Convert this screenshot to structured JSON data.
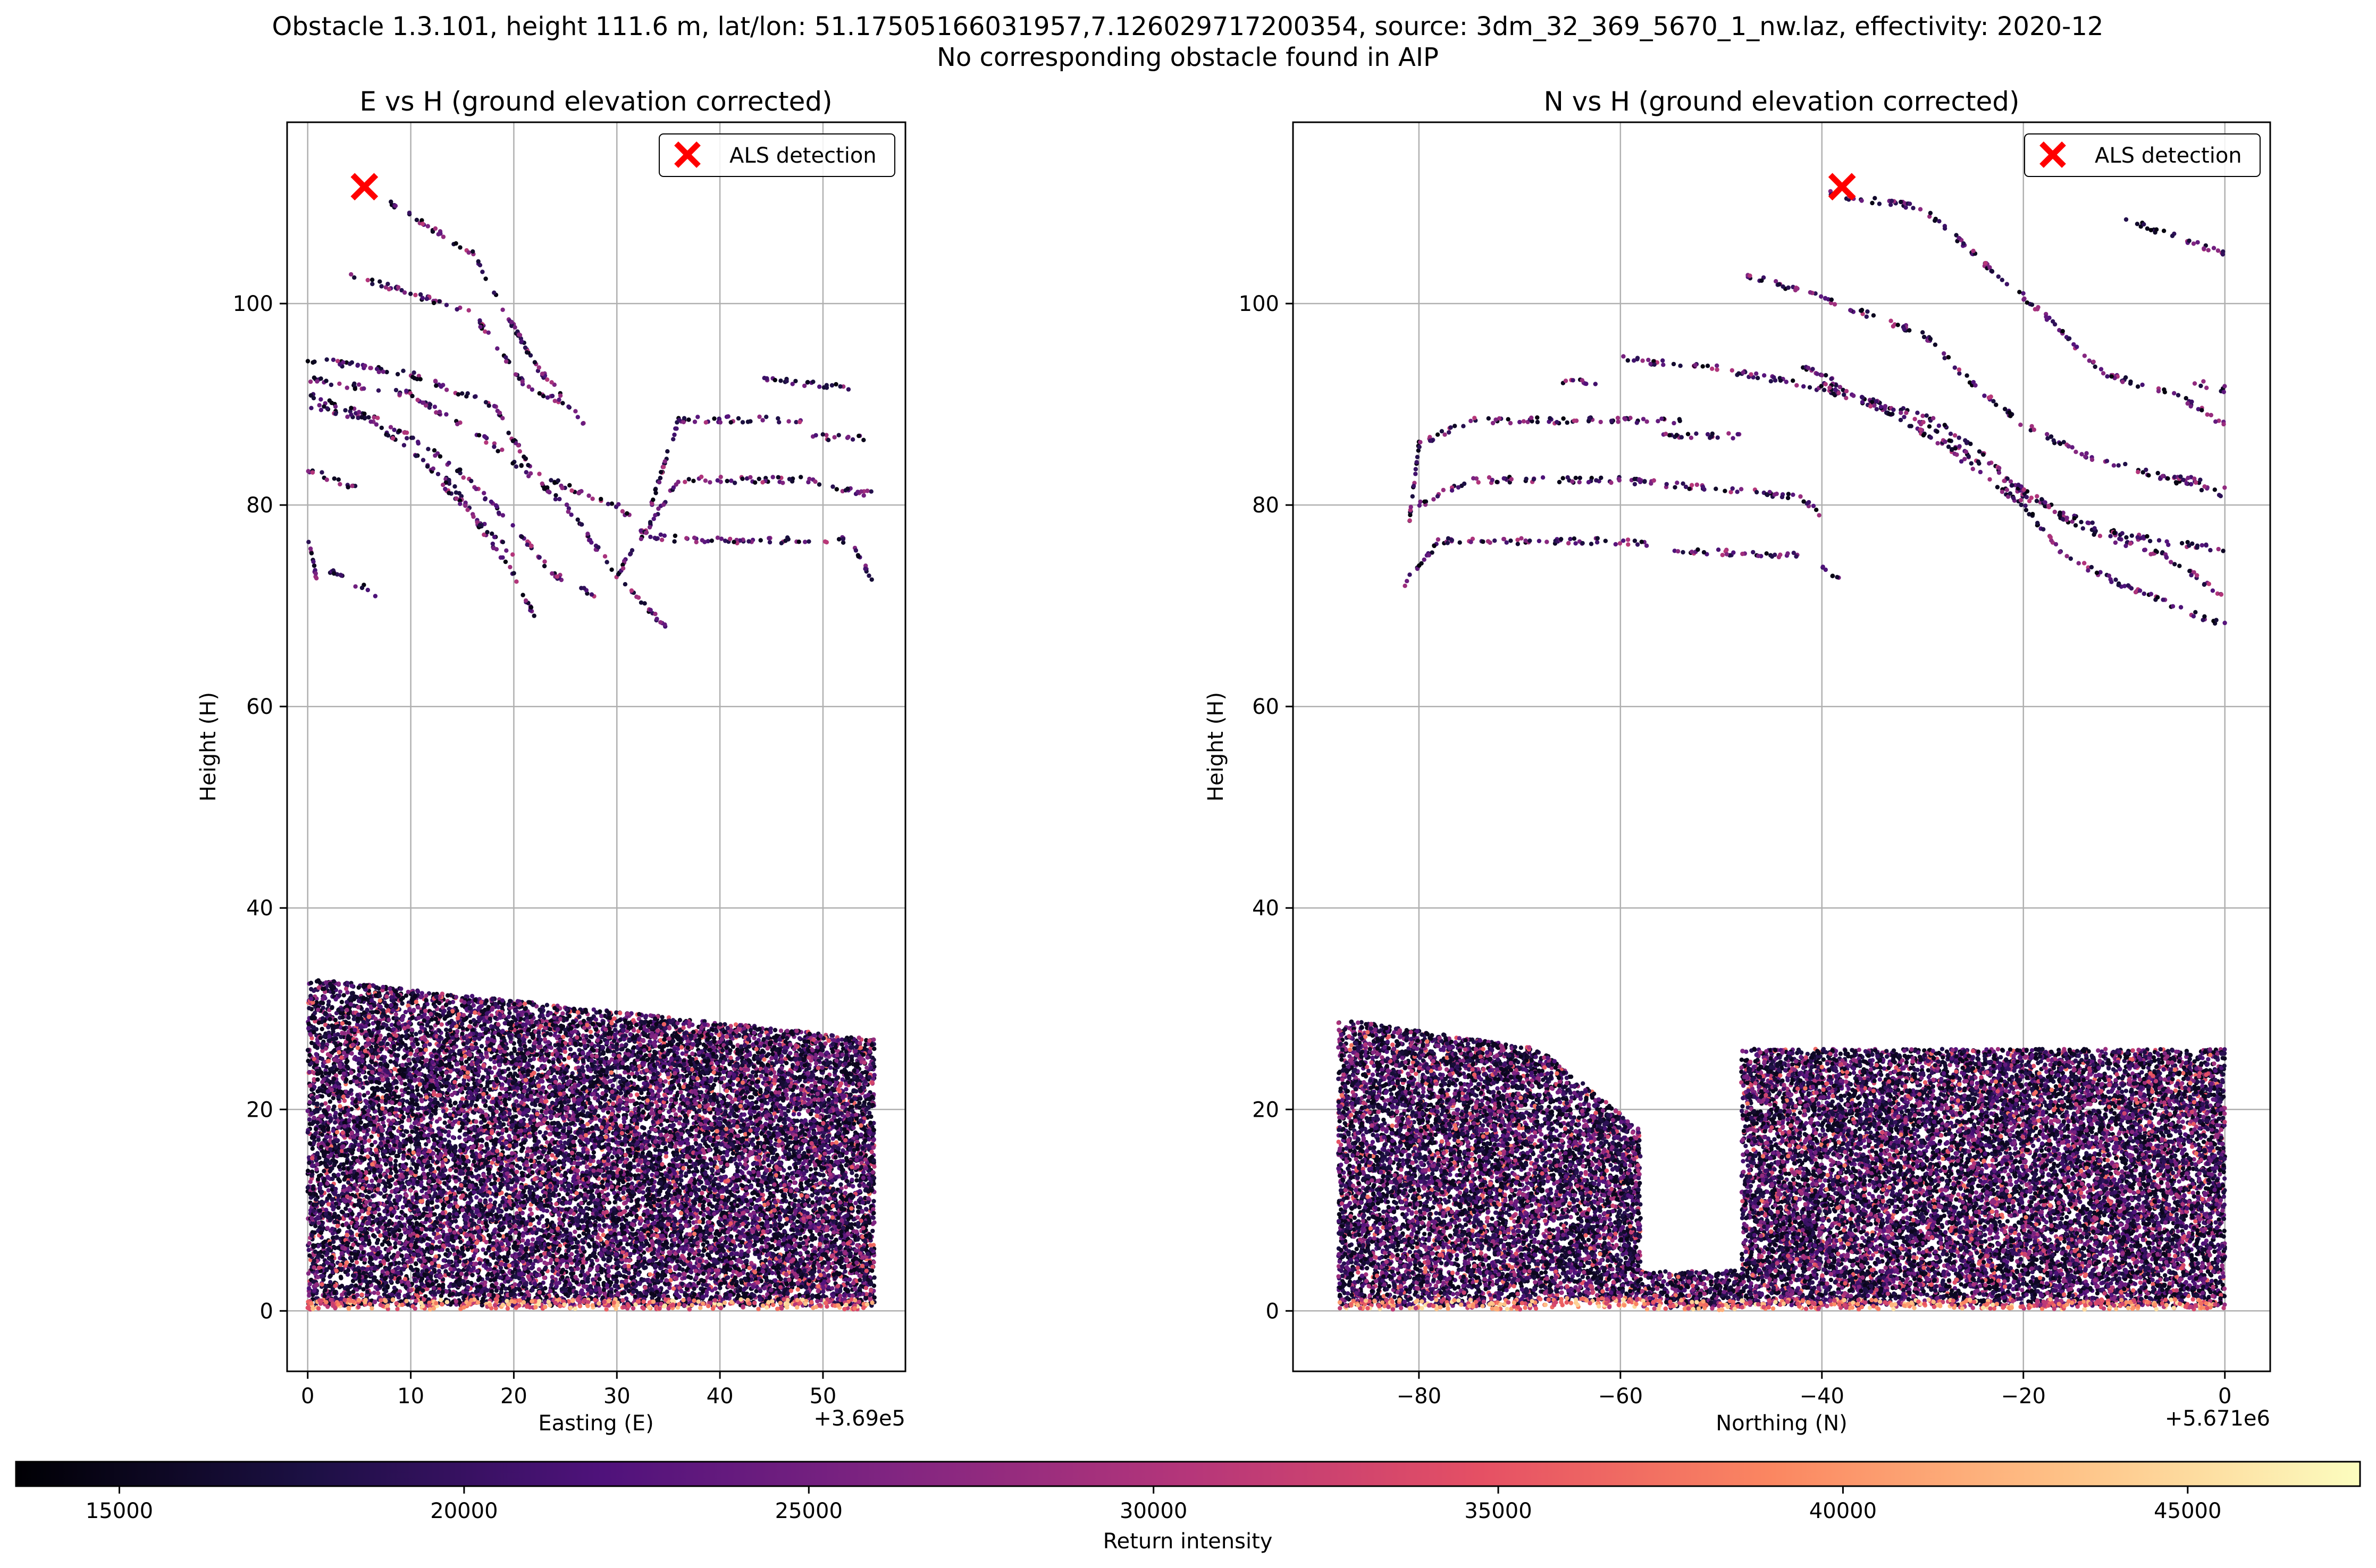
{
  "figure": {
    "title_line1": "Obstacle 1.3.101, height 111.6 m, lat/lon: 51.17505166031957,7.126029717200354, source: 3dm_32_369_5670_1_nw.laz, effectivity: 2020-12",
    "title_line2": "No corresponding obstacle found in AIP"
  },
  "colors": {
    "marker": "#ff0000",
    "grid": "#b0b0b0",
    "colormap": "magma"
  },
  "chart_data": [
    {
      "type": "scatter",
      "title": "E vs H (ground elevation corrected)",
      "xlabel": "Easting (E)",
      "ylabel": "Height (H)",
      "x_offset_label": "+3.69e5",
      "xlim": [
        -2,
        58
      ],
      "ylim": [
        -6,
        118
      ],
      "xticks": [
        0,
        10,
        20,
        30,
        40,
        50
      ],
      "yticks": [
        0,
        20,
        40,
        60,
        80,
        100
      ],
      "grid": true,
      "legend": {
        "label": "ALS detection",
        "position": "top-right"
      },
      "detection": {
        "x": 5.5,
        "y": 111.6
      },
      "line_segments": [
        [
          [
            8,
            110
          ],
          [
            16,
            105
          ],
          [
            22,
            94
          ],
          [
            27,
            88
          ]
        ],
        [
          [
            4,
            103
          ],
          [
            16,
            99
          ],
          [
            21,
            92
          ],
          [
            25,
            90
          ]
        ],
        [
          [
            0,
            94.5
          ],
          [
            10,
            93
          ],
          [
            18,
            90
          ],
          [
            22,
            83
          ],
          [
            30,
            80
          ],
          [
            33,
            77
          ]
        ],
        [
          [
            0,
            92.5
          ],
          [
            10,
            91
          ],
          [
            18,
            86
          ],
          [
            25,
            80
          ],
          [
            30,
            73
          ],
          [
            35,
            67.5
          ]
        ],
        [
          [
            0,
            91
          ],
          [
            8,
            88
          ],
          [
            14,
            84
          ],
          [
            18,
            80
          ],
          [
            24,
            73
          ],
          [
            28,
            71
          ]
        ],
        [
          [
            0,
            90
          ],
          [
            6,
            88.5
          ],
          [
            14,
            82
          ],
          [
            20,
            73
          ],
          [
            22,
            69
          ]
        ],
        [
          [
            0,
            83.5
          ],
          [
            5,
            81.5
          ]
        ],
        [
          [
            0,
            77
          ],
          [
            1,
            72
          ]
        ],
        [
          [
            2,
            73.5
          ],
          [
            7,
            71
          ]
        ],
        [
          [
            13,
            82
          ],
          [
            20,
            75
          ]
        ],
        [
          [
            33,
            79
          ],
          [
            36,
            88.5
          ],
          [
            48,
            88.5
          ]
        ],
        [
          [
            30,
            73
          ],
          [
            36,
            82.5
          ],
          [
            48,
            82.5
          ],
          [
            55,
            81
          ]
        ],
        [
          [
            33,
            77
          ],
          [
            37,
            76.5
          ],
          [
            52,
            76.5
          ]
        ],
        [
          [
            44,
            92.5
          ],
          [
            53,
            91.5
          ]
        ],
        [
          [
            49,
            86.8
          ],
          [
            54,
            86.6
          ]
        ],
        [
          [
            53,
            76
          ],
          [
            55,
            72
          ]
        ]
      ],
      "dense_regions": [
        {
          "x_range": [
            0,
            55
          ],
          "h_top_start": 33,
          "h_top_end": 27,
          "h_bottom": 0.5
        }
      ],
      "intensity_range": [
        13500,
        46000
      ]
    },
    {
      "type": "scatter",
      "title": "N vs H (ground elevation corrected)",
      "xlabel": "Northing (N)",
      "ylabel": "Height (H)",
      "x_offset_label": "+5.671e6",
      "xlim": [
        -92.5,
        4.5
      ],
      "ylim": [
        -6,
        118
      ],
      "xticks": [
        -80,
        -60,
        -40,
        -20,
        0
      ],
      "yticks": [
        0,
        20,
        40,
        60,
        80,
        100
      ],
      "grid": true,
      "legend": {
        "label": "ALS detection",
        "position": "top-right"
      },
      "detection": {
        "x": -38,
        "y": 111.6
      },
      "line_segments": [
        [
          [
            -40,
            111
          ],
          [
            -30,
            109.5
          ],
          [
            -25,
            105
          ],
          [
            -18,
            99
          ],
          [
            -12,
            93
          ],
          [
            -5,
            91
          ],
          [
            0,
            88
          ]
        ],
        [
          [
            -48,
            103
          ],
          [
            -40,
            100.5
          ],
          [
            -30,
            97
          ],
          [
            -25,
            92
          ],
          [
            -20,
            88
          ],
          [
            -14,
            85
          ],
          [
            -5,
            82.5
          ],
          [
            0,
            81
          ]
        ],
        [
          [
            -60,
            94.5
          ],
          [
            -50,
            93.5
          ],
          [
            -40,
            91.5
          ],
          [
            -30,
            89
          ],
          [
            -25,
            86
          ],
          [
            -20,
            81
          ],
          [
            -14,
            77.5
          ],
          [
            -6,
            75
          ],
          [
            0,
            71
          ]
        ],
        [
          [
            -42,
            94
          ],
          [
            -35,
            90
          ],
          [
            -28,
            86
          ],
          [
            -20,
            80
          ],
          [
            -16,
            75
          ],
          [
            -10,
            72
          ],
          [
            0,
            68
          ]
        ],
        [
          [
            -40,
            92
          ],
          [
            -30,
            88
          ],
          [
            -24,
            84
          ],
          [
            -16,
            79
          ],
          [
            -10,
            77
          ],
          [
            0,
            75.5
          ]
        ],
        [
          [
            -10,
            108.5
          ],
          [
            -6,
            107
          ],
          [
            0,
            105
          ]
        ],
        [
          [
            -5,
            83
          ],
          [
            0,
            81.5
          ]
        ],
        [
          [
            -3,
            92.2
          ],
          [
            0,
            91.5
          ]
        ],
        [
          [
            -81,
            78
          ],
          [
            -80,
            86
          ],
          [
            -75,
            88.4
          ],
          [
            -60,
            88.4
          ],
          [
            -54,
            88.4
          ]
        ],
        [
          [
            -80,
            80
          ],
          [
            -75,
            82.5
          ],
          [
            -60,
            82.5
          ],
          [
            -42,
            80.8
          ],
          [
            -40,
            79
          ]
        ],
        [
          [
            -82,
            71.5
          ],
          [
            -78,
            76.4
          ],
          [
            -60,
            76.4
          ],
          [
            -57,
            76
          ]
        ],
        [
          [
            -66,
            92.3
          ],
          [
            -62,
            92.3
          ]
        ],
        [
          [
            -56,
            87
          ],
          [
            -48,
            86.8
          ]
        ],
        [
          [
            -55,
            75.5
          ],
          [
            -42,
            75
          ]
        ],
        [
          [
            -40,
            74
          ],
          [
            -38,
            72.5
          ]
        ]
      ],
      "dense_regions": [
        {
          "x_range": [
            -88,
            -68
          ],
          "h_top_start": 29,
          "h_top_end": 26,
          "h_bottom": 0.5
        },
        {
          "x_range": [
            -68,
            -58
          ],
          "h_top_start": 26,
          "h_top_end": 18,
          "h_bottom": 1
        },
        {
          "x_range": [
            -58,
            -48
          ],
          "h_top_start": 4,
          "h_top_end": 4,
          "h_bottom": 0.3
        },
        {
          "x_range": [
            -48,
            0
          ],
          "h_top_start": 26,
          "h_top_end": 26,
          "h_bottom": 0.5
        }
      ],
      "intensity_range": [
        13500,
        46000
      ]
    }
  ],
  "colorbar": {
    "label": "Return intensity",
    "vmin": 13500,
    "vmax": 47500,
    "ticks": [
      15000,
      20000,
      25000,
      30000,
      35000,
      40000,
      45000
    ]
  }
}
